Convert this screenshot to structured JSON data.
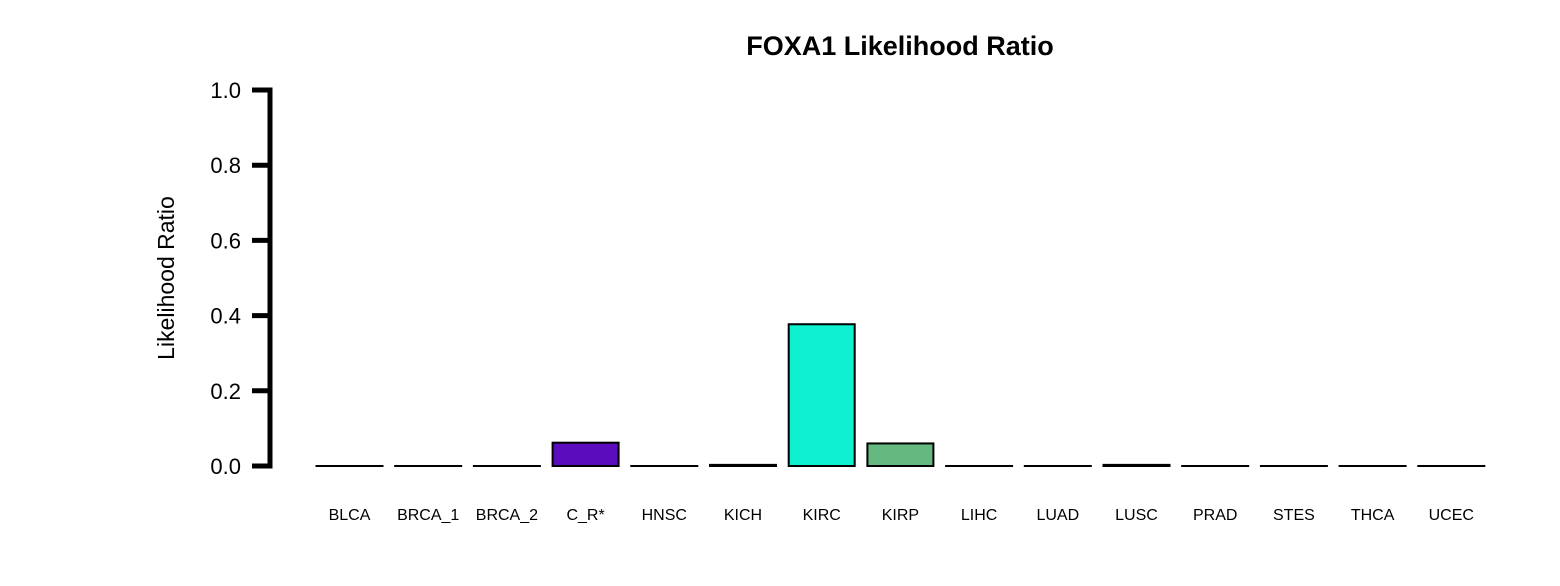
{
  "chart_data": {
    "type": "bar",
    "title": "FOXA1 Likelihood Ratio",
    "xlabel": "",
    "ylabel": "Likelihood Ratio",
    "ylim": [
      0,
      1.0
    ],
    "yticks": [
      "0.0",
      "0.2",
      "0.4",
      "0.6",
      "0.8",
      "1.0"
    ],
    "ytick_values": [
      0,
      0.2,
      0.4,
      0.6,
      0.8,
      1.0
    ],
    "grid": false,
    "categories": [
      "BLCA",
      "BRCA_1",
      "BRCA_2",
      "C_R*",
      "HNSC",
      "KICH",
      "KIRC",
      "KIRP",
      "LIHC",
      "LUAD",
      "LUSC",
      "PRAD",
      "STES",
      "THCA",
      "UCEC"
    ],
    "values": [
      0,
      0,
      0,
      0.062,
      0,
      0.003,
      0.377,
      0.06,
      0,
      0,
      0.003,
      0,
      0,
      0,
      0
    ],
    "colors": [
      "#ffffff",
      "#ffffff",
      "#ffffff",
      "#5b0cbd",
      "#ffffff",
      "#ffffff",
      "#0ef0d0",
      "#63b97f",
      "#ffffff",
      "#ffffff",
      "#ffffff",
      "#ffffff",
      "#ffffff",
      "#ffffff",
      "#ffffff"
    ]
  }
}
